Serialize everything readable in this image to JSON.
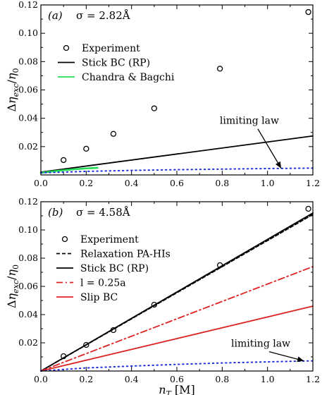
{
  "chart_data": [
    {
      "type": "scatter",
      "panel_label": "(a)",
      "sigma_label": "σ = 2.82Å",
      "xlabel": "",
      "ylabel": "Δη_exc/η_0",
      "xlim": [
        0,
        1.2
      ],
      "ylim": [
        0,
        0.12
      ],
      "x_ticks": [
        "0.0",
        "0.2",
        "0.4",
        "0.6",
        "0.8",
        "1.0",
        "1.2"
      ],
      "y_ticks": [
        "0.02",
        "0.04",
        "0.06",
        "0.08",
        "0.10",
        "0.12"
      ],
      "y_tick_values": [
        0.02,
        0.04,
        0.06,
        0.08,
        0.1,
        0.12
      ],
      "grid": false,
      "legend_position": "top-left",
      "series": [
        {
          "name": "Experiment",
          "kind": "markers",
          "color": "#000000",
          "x": [
            0.1,
            0.2,
            0.32,
            0.5,
            0.79,
            1.18
          ],
          "y": [
            0.0105,
            0.0185,
            0.029,
            0.047,
            0.075,
            0.115
          ]
        },
        {
          "name": "Stick BC (RP)",
          "kind": "solid",
          "color": "#000000",
          "x": [
            0.0,
            1.2
          ],
          "y": [
            0.002,
            0.0275
          ]
        },
        {
          "name": "Chandra & Bagchi",
          "kind": "solid",
          "color": "#22dd55",
          "x": [
            0.0,
            0.05,
            0.1,
            0.15,
            0.2,
            0.25
          ],
          "y": [
            0.0015,
            0.0025,
            0.0033,
            0.004,
            0.0046,
            0.005
          ]
        },
        {
          "name": "",
          "kind": "dotted",
          "color": "#2233dd",
          "x": [
            0.0,
            0.2,
            0.4,
            0.6,
            0.8,
            1.0,
            1.2
          ],
          "y": [
            0.0015,
            0.0025,
            0.0032,
            0.0037,
            0.0041,
            0.0045,
            0.0048
          ]
        }
      ],
      "annotations": [
        {
          "text": "limiting law",
          "x": 0.92,
          "y": 0.036,
          "arrow_to": [
            1.06,
            0.0047
          ]
        }
      ]
    },
    {
      "type": "line",
      "panel_label": "(b)",
      "sigma_label": "σ = 4.58Å",
      "xlabel": "n_T   [M]",
      "ylabel": "Δη_exc/η_0",
      "xlim": [
        0,
        1.2
      ],
      "ylim": [
        0,
        0.12
      ],
      "x_ticks": [
        "0.0",
        "0.2",
        "0.4",
        "0.6",
        "0.8",
        "1.0",
        "1.2"
      ],
      "y_ticks": [
        "0.02",
        "0.04",
        "0.06",
        "0.08",
        "0.10",
        "0.12"
      ],
      "y_tick_values": [
        0.02,
        0.04,
        0.06,
        0.08,
        0.1,
        0.12
      ],
      "grid": false,
      "legend_position": "top-left",
      "series": [
        {
          "name": "Experiment",
          "kind": "markers",
          "color": "#000000",
          "x": [
            0.1,
            0.2,
            0.32,
            0.5,
            0.79,
            1.18
          ],
          "y": [
            0.0105,
            0.0185,
            0.029,
            0.047,
            0.075,
            0.115
          ]
        },
        {
          "name": "Relaxation PA-HIs",
          "kind": "dashed",
          "color": "#000000",
          "x": [
            0.0,
            1.2
          ],
          "y": [
            0.0,
            0.111
          ]
        },
        {
          "name": "Stick BC (RP)",
          "kind": "solid",
          "color": "#000000",
          "x": [
            0.0,
            1.2
          ],
          "y": [
            0.0,
            0.112
          ]
        },
        {
          "name": "l = 0.25a",
          "kind": "dashdot",
          "color": "#dd2222",
          "x": [
            0.0,
            1.2
          ],
          "y": [
            0.0,
            0.074
          ]
        },
        {
          "name": "Slip BC",
          "kind": "solid",
          "color": "#dd2222",
          "x": [
            0.0,
            1.2
          ],
          "y": [
            0.0,
            0.046
          ]
        },
        {
          "name": "",
          "kind": "dotted",
          "color": "#2233dd",
          "x": [
            0.0,
            0.2,
            0.4,
            0.6,
            0.8,
            1.0,
            1.2
          ],
          "y": [
            0.0,
            0.0022,
            0.0035,
            0.0047,
            0.0057,
            0.0065,
            0.0072
          ]
        }
      ],
      "annotations": [
        {
          "text": "limiting law",
          "x": 0.97,
          "y": 0.0172,
          "arrow_to": [
            1.16,
            0.0072
          ]
        }
      ]
    }
  ]
}
